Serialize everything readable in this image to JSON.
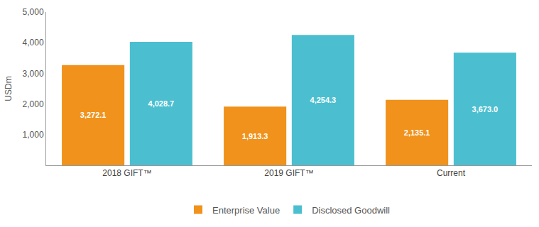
{
  "chart_data": {
    "type": "bar",
    "y_label": "USDm",
    "categories": [
      "2018 GIFT™",
      "2019 GIFT™",
      "Current"
    ],
    "series": [
      {
        "name": "Enterprise Value",
        "color": "#f0921b",
        "values": [
          3272.1,
          1913.3,
          2135.1
        ],
        "value_labels": [
          "3,272.1",
          "1,913.3",
          "2,135.1"
        ]
      },
      {
        "name": "Disclosed Goodwill",
        "color": "#4bbfd0",
        "values": [
          4028.7,
          4254.3,
          3673.0
        ],
        "value_labels": [
          "4,028.7",
          "4,254.3",
          "3,673.0"
        ]
      }
    ],
    "ylim": [
      0,
      5000
    ],
    "yticks": [
      {
        "value": 1000,
        "label": "1,000"
      },
      {
        "value": 2000,
        "label": "2,000"
      },
      {
        "value": 3000,
        "label": "3,000"
      },
      {
        "value": 4000,
        "label": "4,000"
      },
      {
        "value": 5000,
        "label": "5,000"
      }
    ],
    "grid": false,
    "legend": "bottom",
    "data_labels": true
  }
}
